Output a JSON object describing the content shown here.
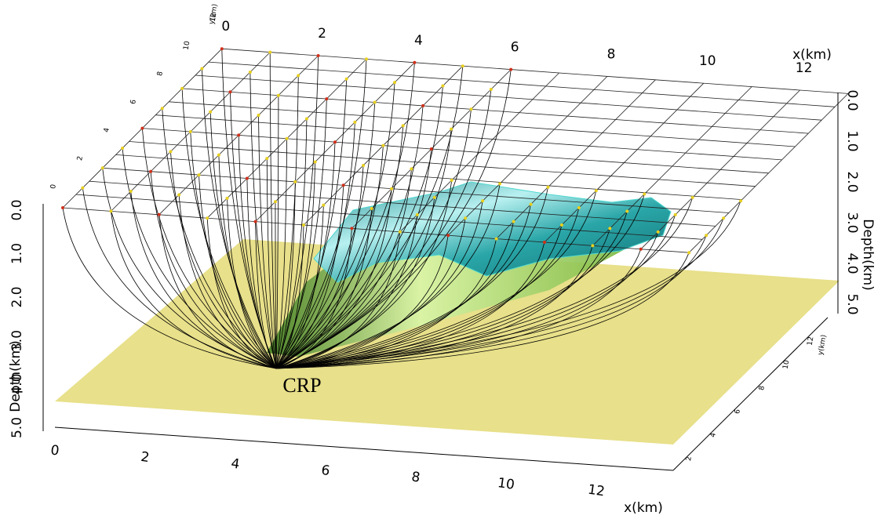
{
  "crp_label": "CRP",
  "top_x_axis": {
    "ticks": [
      "0",
      "2",
      "4",
      "6",
      "8",
      "10",
      "12"
    ],
    "title": "x(km)"
  },
  "bottom_x_axis": {
    "ticks": [
      "0",
      "2",
      "4",
      "6",
      "8",
      "10",
      "12"
    ],
    "title": "x(km)"
  },
  "left_depth_axis": {
    "ticks": [
      "0.0",
      "1.0",
      "2.0",
      "3.0",
      "4.0",
      "5.0"
    ],
    "title": "Depth(km)"
  },
  "right_depth_axis": {
    "ticks": [
      "0.0",
      "1.0",
      "2.0",
      "3.0",
      "4.0",
      "5.0"
    ],
    "title": "Depth(km)"
  },
  "left_y_axis": {
    "ticks": [
      "0",
      "2",
      "4",
      "6",
      "8",
      "10",
      "12"
    ],
    "title": "y(km)"
  },
  "right_y_axis": {
    "ticks": [
      "2",
      "4",
      "6",
      "8",
      "10",
      "12"
    ],
    "title": "y(km)"
  }
}
